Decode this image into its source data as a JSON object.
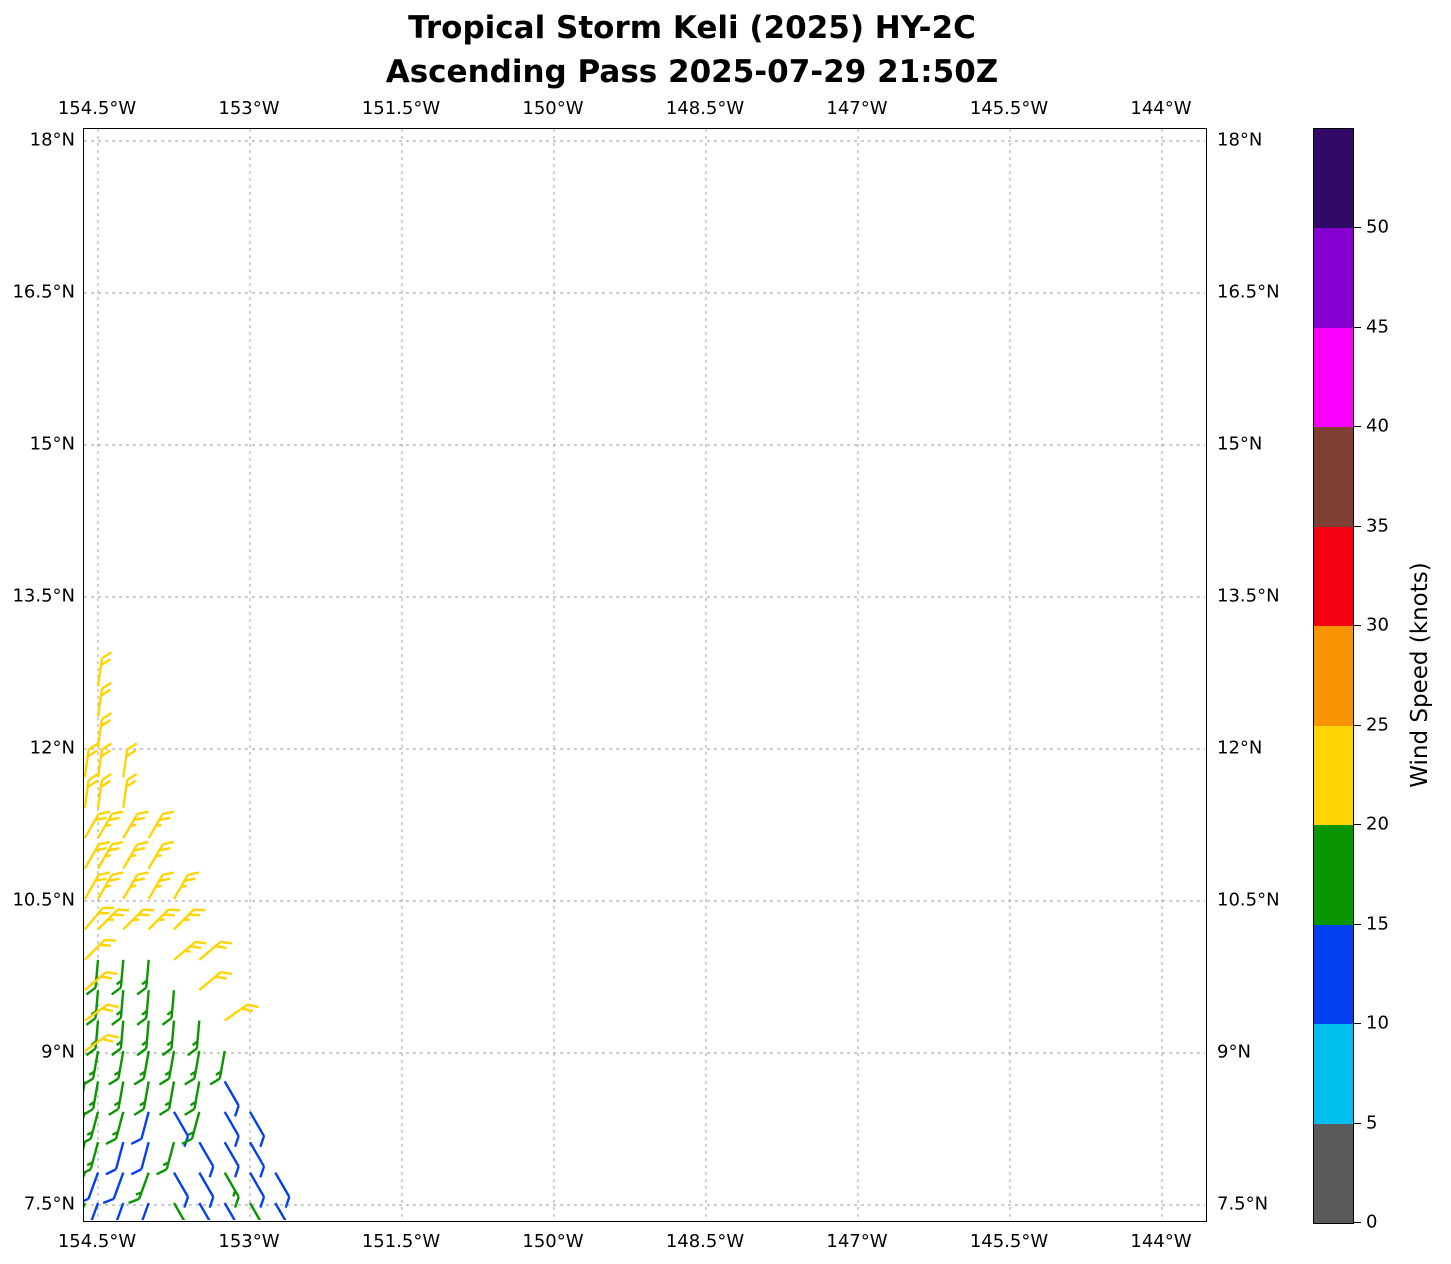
{
  "title": {
    "line1": "Tropical Storm Keli (2025) HY-2C",
    "line2": "Ascending Pass 2025-07-29 21:50Z"
  },
  "chart_data": {
    "type": "scatter",
    "subtype": "wind_barb_map",
    "title": "Tropical Storm Keli (2025) HY-2C — Ascending Pass 2025-07-29 21:50Z",
    "xlabel": "Longitude",
    "ylabel": "Latitude",
    "xlim": [
      -154.64,
      -143.55
    ],
    "ylim": [
      7.32,
      18.12
    ],
    "grid": true,
    "x_tick_values": [
      -154.5,
      -153,
      -151.5,
      -150,
      -148.5,
      -147,
      -145.5,
      -144
    ],
    "x_tick_labels": [
      "154.5°W",
      "153°W",
      "151.5°W",
      "150°W",
      "148.5°W",
      "147°W",
      "145.5°W",
      "144°W"
    ],
    "y_tick_values": [
      18,
      16.5,
      15,
      13.5,
      12,
      10.5,
      9,
      7.5
    ],
    "y_tick_labels": [
      "18°N",
      "16.5°N",
      "15°N",
      "13.5°N",
      "12°N",
      "10.5°N",
      "9°N",
      "7.5°N"
    ],
    "colorbar": {
      "label": "Wind Speed (knots)",
      "tick_values": [
        0,
        5,
        10,
        15,
        20,
        25,
        30,
        35,
        40,
        45,
        50
      ],
      "vmin": 0,
      "vmax": 55,
      "bins": [
        {
          "from": 0,
          "to": 5,
          "color": "#5a5a5a"
        },
        {
          "from": 5,
          "to": 10,
          "color": "#00bfef"
        },
        {
          "from": 10,
          "to": 15,
          "color": "#0540ee"
        },
        {
          "from": 15,
          "to": 20,
          "color": "#0a9600"
        },
        {
          "from": 20,
          "to": 25,
          "color": "#ffd400"
        },
        {
          "from": 25,
          "to": 30,
          "color": "#f79400"
        },
        {
          "from": 30,
          "to": 35,
          "color": "#f50010"
        },
        {
          "from": 35,
          "to": 40,
          "color": "#7e4033"
        },
        {
          "from": 40,
          "to": 45,
          "color": "#fb00ff"
        },
        {
          "from": 45,
          "to": 50,
          "color": "#8500d1"
        },
        {
          "from": 50,
          "to": 55,
          "color": "#300a66"
        }
      ]
    },
    "barbs_note": "Each barb: [longitude_deg_east, latitude_deg_north, wind_speed_knots, glyph_rotation_deg_cw]",
    "barbs": [
      [
        -154.5,
        12.62,
        21,
        8
      ],
      [
        -154.5,
        12.32,
        21,
        8
      ],
      [
        -154.5,
        12.02,
        21,
        8
      ],
      [
        -154.63,
        11.72,
        21,
        8
      ],
      [
        -154.5,
        11.72,
        21,
        8
      ],
      [
        -154.25,
        11.72,
        21,
        8
      ],
      [
        -154.63,
        11.42,
        21,
        8
      ],
      [
        -154.5,
        11.42,
        21,
        8
      ],
      [
        -154.25,
        11.42,
        21,
        8
      ],
      [
        -154.63,
        11.12,
        21,
        30
      ],
      [
        -154.5,
        11.12,
        24,
        30
      ],
      [
        -154.25,
        11.12,
        24,
        30
      ],
      [
        -154.0,
        11.12,
        24,
        30
      ],
      [
        -154.63,
        10.82,
        21,
        30
      ],
      [
        -154.5,
        10.82,
        24,
        30
      ],
      [
        -154.25,
        10.82,
        24,
        30
      ],
      [
        -154.0,
        10.82,
        24,
        30
      ],
      [
        -154.63,
        10.52,
        21,
        30
      ],
      [
        -154.5,
        10.52,
        24,
        30
      ],
      [
        -154.25,
        10.52,
        24,
        30
      ],
      [
        -154.0,
        10.52,
        24,
        30
      ],
      [
        -153.75,
        10.52,
        24,
        30
      ],
      [
        -154.63,
        10.22,
        21,
        40
      ],
      [
        -154.5,
        10.22,
        24,
        45
      ],
      [
        -154.25,
        10.22,
        24,
        45
      ],
      [
        -154.0,
        10.22,
        24,
        45
      ],
      [
        -153.75,
        10.22,
        24,
        45
      ],
      [
        -154.63,
        9.92,
        21,
        45
      ],
      [
        -154.5,
        9.92,
        16,
        185
      ],
      [
        -154.25,
        9.92,
        16,
        185
      ],
      [
        -154.0,
        9.92,
        16,
        185
      ],
      [
        -153.75,
        9.92,
        24,
        50
      ],
      [
        -153.5,
        9.92,
        21,
        50
      ],
      [
        -154.63,
        9.62,
        21,
        50
      ],
      [
        -154.5,
        9.62,
        16,
        185
      ],
      [
        -154.25,
        9.62,
        16,
        185
      ],
      [
        -154.0,
        9.62,
        16,
        185
      ],
      [
        -153.75,
        9.62,
        16,
        185
      ],
      [
        -153.5,
        9.62,
        21,
        50
      ],
      [
        -154.63,
        9.32,
        21,
        55
      ],
      [
        -154.5,
        9.32,
        16,
        185
      ],
      [
        -154.25,
        9.32,
        16,
        185
      ],
      [
        -154.0,
        9.32,
        16,
        185
      ],
      [
        -153.75,
        9.32,
        16,
        185
      ],
      [
        -153.5,
        9.32,
        16,
        185
      ],
      [
        -153.25,
        9.32,
        21,
        55
      ],
      [
        -154.63,
        9.02,
        21,
        55
      ],
      [
        -154.5,
        9.02,
        16,
        190
      ],
      [
        -154.25,
        9.02,
        16,
        190
      ],
      [
        -154.0,
        9.02,
        16,
        190
      ],
      [
        -153.75,
        9.02,
        16,
        190
      ],
      [
        -153.5,
        9.02,
        16,
        190
      ],
      [
        -153.25,
        9.02,
        16,
        190
      ],
      [
        -154.63,
        8.72,
        16,
        190
      ],
      [
        -154.5,
        8.72,
        16,
        190
      ],
      [
        -154.25,
        8.72,
        16,
        190
      ],
      [
        -154.0,
        8.72,
        16,
        190
      ],
      [
        -153.75,
        8.72,
        16,
        190
      ],
      [
        -153.5,
        8.72,
        16,
        190
      ],
      [
        -153.25,
        8.72,
        11,
        150
      ],
      [
        -154.63,
        8.42,
        16,
        195
      ],
      [
        -154.5,
        8.42,
        16,
        195
      ],
      [
        -154.25,
        8.42,
        16,
        195
      ],
      [
        -154.0,
        8.42,
        11,
        195
      ],
      [
        -153.75,
        8.42,
        11,
        150
      ],
      [
        -153.5,
        8.42,
        16,
        195
      ],
      [
        -153.25,
        8.42,
        11,
        150
      ],
      [
        -153.0,
        8.42,
        11,
        150
      ],
      [
        -154.63,
        8.12,
        16,
        195
      ],
      [
        -154.5,
        8.12,
        16,
        195
      ],
      [
        -154.25,
        8.12,
        11,
        195
      ],
      [
        -154.0,
        8.12,
        11,
        195
      ],
      [
        -153.75,
        8.12,
        16,
        195
      ],
      [
        -153.5,
        8.12,
        11,
        150
      ],
      [
        -153.25,
        8.12,
        11,
        150
      ],
      [
        -153.0,
        8.12,
        11,
        150
      ],
      [
        -154.63,
        7.82,
        16,
        200
      ],
      [
        -154.5,
        7.82,
        11,
        200
      ],
      [
        -154.25,
        7.82,
        11,
        200
      ],
      [
        -154.0,
        7.82,
        16,
        200
      ],
      [
        -153.75,
        7.82,
        11,
        150
      ],
      [
        -153.5,
        7.82,
        11,
        150
      ],
      [
        -153.25,
        7.82,
        16,
        150
      ],
      [
        -153.0,
        7.82,
        11,
        150
      ],
      [
        -152.75,
        7.82,
        11,
        150
      ],
      [
        -154.63,
        7.52,
        16,
        200
      ],
      [
        -154.5,
        7.52,
        11,
        200
      ],
      [
        -154.25,
        7.52,
        11,
        200
      ],
      [
        -154.0,
        7.52,
        11,
        200
      ],
      [
        -153.75,
        7.52,
        16,
        150
      ],
      [
        -153.5,
        7.52,
        11,
        150
      ],
      [
        -153.25,
        7.52,
        11,
        150
      ],
      [
        -153.0,
        7.52,
        16,
        150
      ],
      [
        -152.75,
        7.52,
        11,
        150
      ]
    ]
  },
  "style": {
    "grid_color": "#9a9a9a",
    "axis_color": "#000000",
    "background": "#ffffff"
  }
}
